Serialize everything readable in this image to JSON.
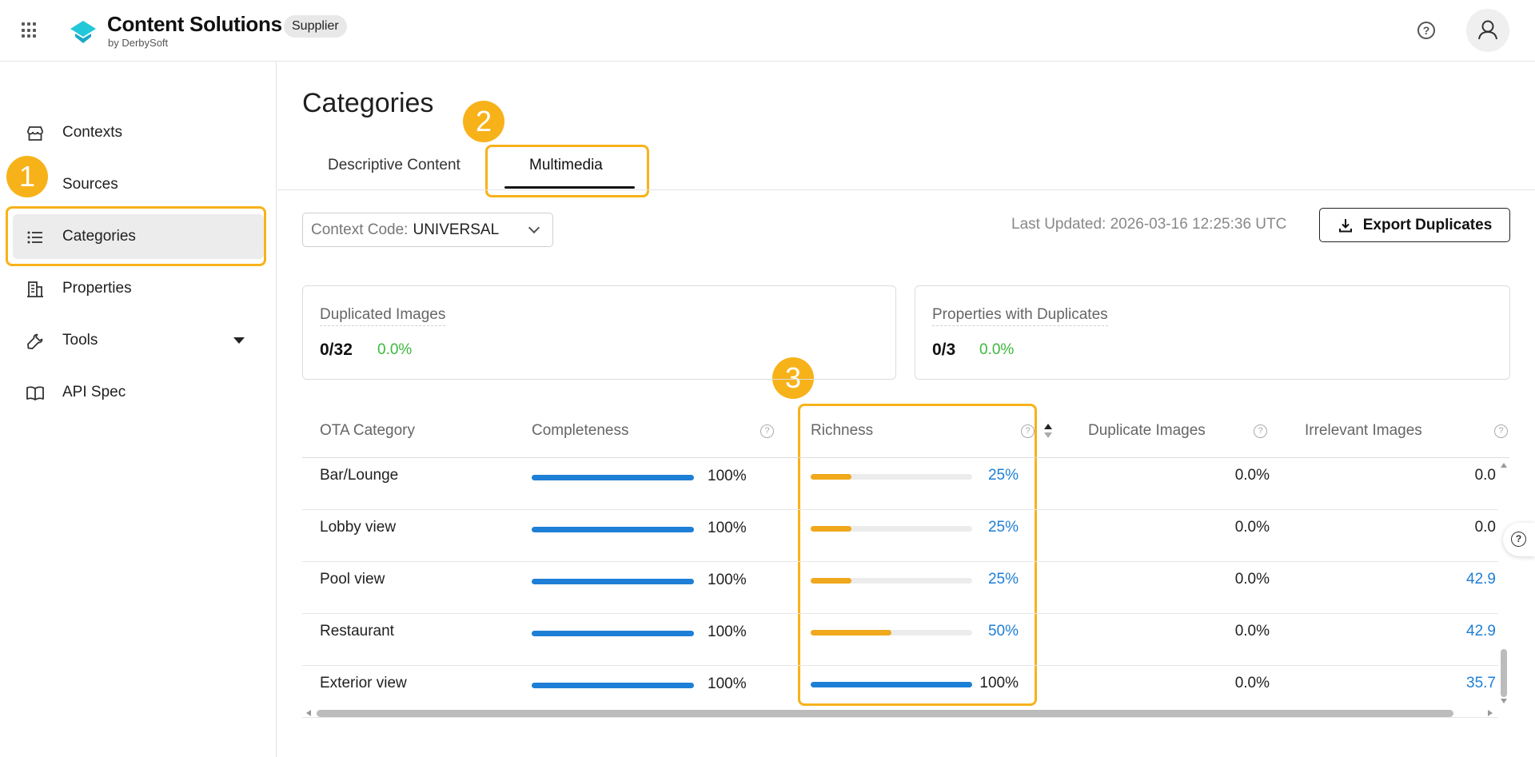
{
  "header": {
    "brand_title": "Content Solutions",
    "brand_sub": "by DerbySoft",
    "role_badge": "Supplier"
  },
  "sidebar": {
    "items": [
      {
        "label": "Contexts",
        "icon": "store-icon"
      },
      {
        "label": "Sources",
        "icon": "database-icon"
      },
      {
        "label": "Categories",
        "icon": "list-icon",
        "active": true
      },
      {
        "label": "Properties",
        "icon": "building-icon"
      },
      {
        "label": "Tools",
        "icon": "wrench-icon",
        "expandable": true
      },
      {
        "label": "API Spec",
        "icon": "book-icon"
      }
    ]
  },
  "annotations": {
    "one": "1",
    "two": "2",
    "three": "3"
  },
  "main": {
    "title": "Categories",
    "tabs": [
      {
        "label": "Descriptive Content"
      },
      {
        "label": "Multimedia",
        "active": true
      }
    ],
    "context_label": "Context Code:",
    "context_value": "UNIVERSAL",
    "last_updated": "Last Updated: 2026-03-16 12:25:36 UTC",
    "export_label": "Export Duplicates",
    "cards": [
      {
        "title": "Duplicated Images",
        "value": "0/32",
        "pct": "0.0%"
      },
      {
        "title": "Properties with Duplicates",
        "value": "0/3",
        "pct": "0.0%"
      }
    ],
    "table": {
      "headers": [
        "OTA Category",
        "Completeness",
        "Richness",
        "Duplicate Images",
        "Irrelevant Images"
      ],
      "rows": [
        {
          "category": "Bar/Lounge",
          "completeness": 1.0,
          "completeness_text": "100%",
          "richness": 0.25,
          "richness_text": "25%",
          "duplicate": "0.0%",
          "irrelevant": "0.0"
        },
        {
          "category": "Lobby view",
          "completeness": 1.0,
          "completeness_text": "100%",
          "richness": 0.25,
          "richness_text": "25%",
          "duplicate": "0.0%",
          "irrelevant": "0.0"
        },
        {
          "category": "Pool view",
          "completeness": 1.0,
          "completeness_text": "100%",
          "richness": 0.25,
          "richness_text": "25%",
          "duplicate": "0.0%",
          "irrelevant": "42.9"
        },
        {
          "category": "Restaurant",
          "completeness": 1.0,
          "completeness_text": "100%",
          "richness": 0.5,
          "richness_text": "50%",
          "duplicate": "0.0%",
          "irrelevant": "42.9"
        },
        {
          "category": "Exterior view",
          "completeness": 1.0,
          "completeness_text": "100%",
          "richness": 1.0,
          "richness_text": "100%",
          "duplicate": "0.0%",
          "irrelevant": "35.7"
        }
      ]
    }
  },
  "colors": {
    "accent_blue": "#1e7fd6",
    "richness_orange": "#f0a81c",
    "highlight": "#f7b21a",
    "positive_green": "#3bb83b"
  }
}
